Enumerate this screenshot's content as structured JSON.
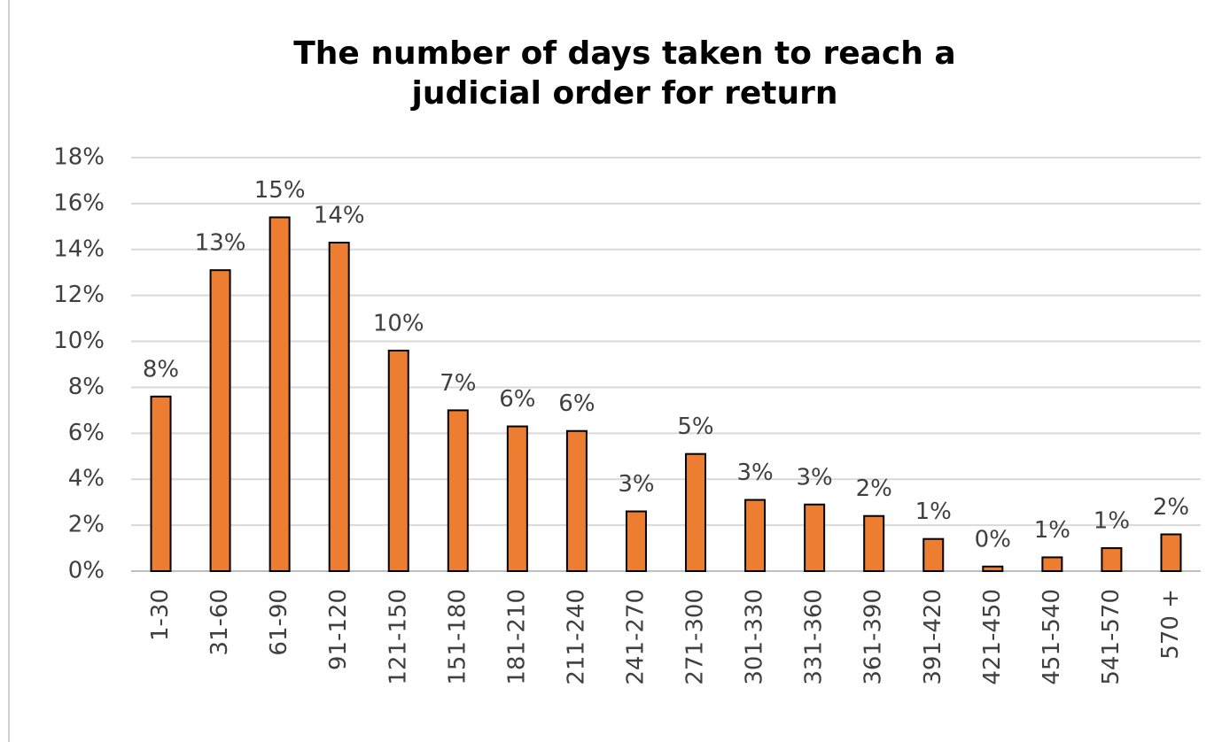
{
  "chart_data": {
    "type": "bar",
    "title": [
      "The number of days taken to reach a",
      "judicial order for return"
    ],
    "categories": [
      "1-30",
      "31-60",
      "61-90",
      "91-120",
      "121-150",
      "151-180",
      "181-210",
      "211-240",
      "241-270",
      "271-300",
      "301-330",
      "331-360",
      "361-390",
      "391-420",
      "421-450",
      "451-540",
      "541-570",
      "570 +"
    ],
    "values": [
      7.6,
      13.1,
      15.4,
      14.3,
      9.6,
      7.0,
      6.3,
      6.1,
      2.6,
      5.1,
      3.1,
      2.9,
      2.4,
      1.4,
      0.2,
      0.6,
      1.0,
      1.6
    ],
    "value_labels": [
      "8%",
      "13%",
      "15%",
      "14%",
      "10%",
      "7%",
      "6%",
      "6%",
      "3%",
      "5%",
      "3%",
      "3%",
      "2%",
      "1%",
      "0%",
      "1%",
      "1%",
      "2%"
    ],
    "color": "#ed7d31",
    "ylim": [
      0,
      18
    ],
    "yticks": [
      {
        "value": 0,
        "label": "0%"
      },
      {
        "value": 2,
        "label": "2%"
      },
      {
        "value": 4,
        "label": "4%"
      },
      {
        "value": 6,
        "label": "6%"
      },
      {
        "value": 8,
        "label": "8%"
      },
      {
        "value": 10,
        "label": "10%"
      },
      {
        "value": 12,
        "label": "12%"
      },
      {
        "value": 14,
        "label": "14%"
      },
      {
        "value": 16,
        "label": "16%"
      },
      {
        "value": 18,
        "label": "18%"
      }
    ],
    "grid": true
  }
}
